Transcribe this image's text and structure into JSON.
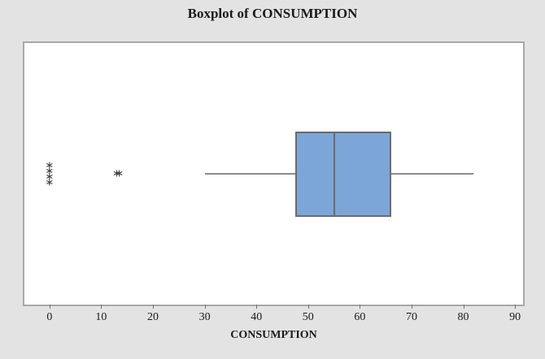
{
  "chart_data": {
    "type": "boxplot",
    "title": "Boxplot of CONSUMPTION",
    "xlabel": "CONSUMPTION",
    "orientation": "horizontal",
    "x_ticks": [
      0,
      10,
      20,
      30,
      40,
      50,
      60,
      70,
      80,
      90
    ],
    "xlim": [
      -4.85,
      91.55
    ],
    "grid": false,
    "legend": "none",
    "box": {
      "whisker_low": 30,
      "q1": 47.5,
      "median": 55,
      "q3": 66,
      "whisker_high": 82
    },
    "outliers": [
      0,
      0,
      0,
      0,
      13,
      13.5
    ],
    "outlier_symbol": "∗",
    "colors": {
      "figure_bg": "#e3e3e3",
      "plot_bg": "#ffffff",
      "frame_border": "#a8a8a8",
      "box_fill": "#7ca6d8",
      "box_border": "#6b6b6b",
      "whisker": "#8c8c8c",
      "median": "#6b6b6b",
      "outlier": "#3f3f3f",
      "tick_mark": "#707070",
      "text": "#1a1a1a"
    }
  }
}
